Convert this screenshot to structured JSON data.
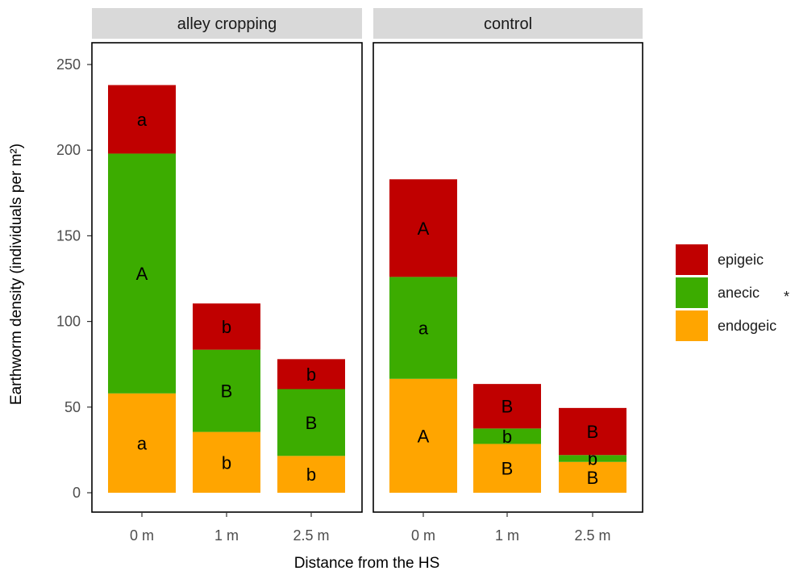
{
  "chart_data": {
    "type": "bar",
    "stacked": true,
    "xlabel": "Distance from the HS",
    "ylabel": "Earthworm density (individuals per m²)",
    "ylim": [
      0,
      250
    ],
    "y_ticks": [
      0,
      50,
      100,
      150,
      200,
      250
    ],
    "categories": [
      "0 m",
      "1 m",
      "2.5 m"
    ],
    "grid": false,
    "legend_position": "right",
    "colors": {
      "epigeic": "#c00000",
      "anecic": "#3cac00",
      "endogeic": "#ffa500"
    },
    "series_order": [
      "endogeic",
      "anecic",
      "epigeic"
    ],
    "legend": [
      {
        "name": "epigeic",
        "note": ""
      },
      {
        "name": "anecic",
        "note": "*"
      },
      {
        "name": "endogeic",
        "note": ""
      }
    ],
    "panels": [
      {
        "name": "alley cropping",
        "series": [
          {
            "name": "endogeic",
            "values": [
              58,
              35.5,
              21.5
            ],
            "letters": [
              "a",
              "b",
              "b"
            ]
          },
          {
            "name": "anecic",
            "values": [
              140,
              48,
              39
            ],
            "letters": [
              "A",
              "B",
              "B"
            ]
          },
          {
            "name": "epigeic",
            "values": [
              40,
              27,
              17.5
            ],
            "letters": [
              "a",
              "b",
              "b"
            ]
          }
        ]
      },
      {
        "name": "control",
        "series": [
          {
            "name": "endogeic",
            "values": [
              66.5,
              28.5,
              18
            ],
            "letters": [
              "A",
              "B",
              "B"
            ]
          },
          {
            "name": "anecic",
            "values": [
              59.5,
              9,
              4
            ],
            "letters": [
              "a",
              "b",
              "b"
            ]
          },
          {
            "name": "epigeic",
            "values": [
              57,
              26,
              27.5
            ],
            "letters": [
              "A",
              "B",
              "B"
            ]
          }
        ]
      }
    ]
  }
}
